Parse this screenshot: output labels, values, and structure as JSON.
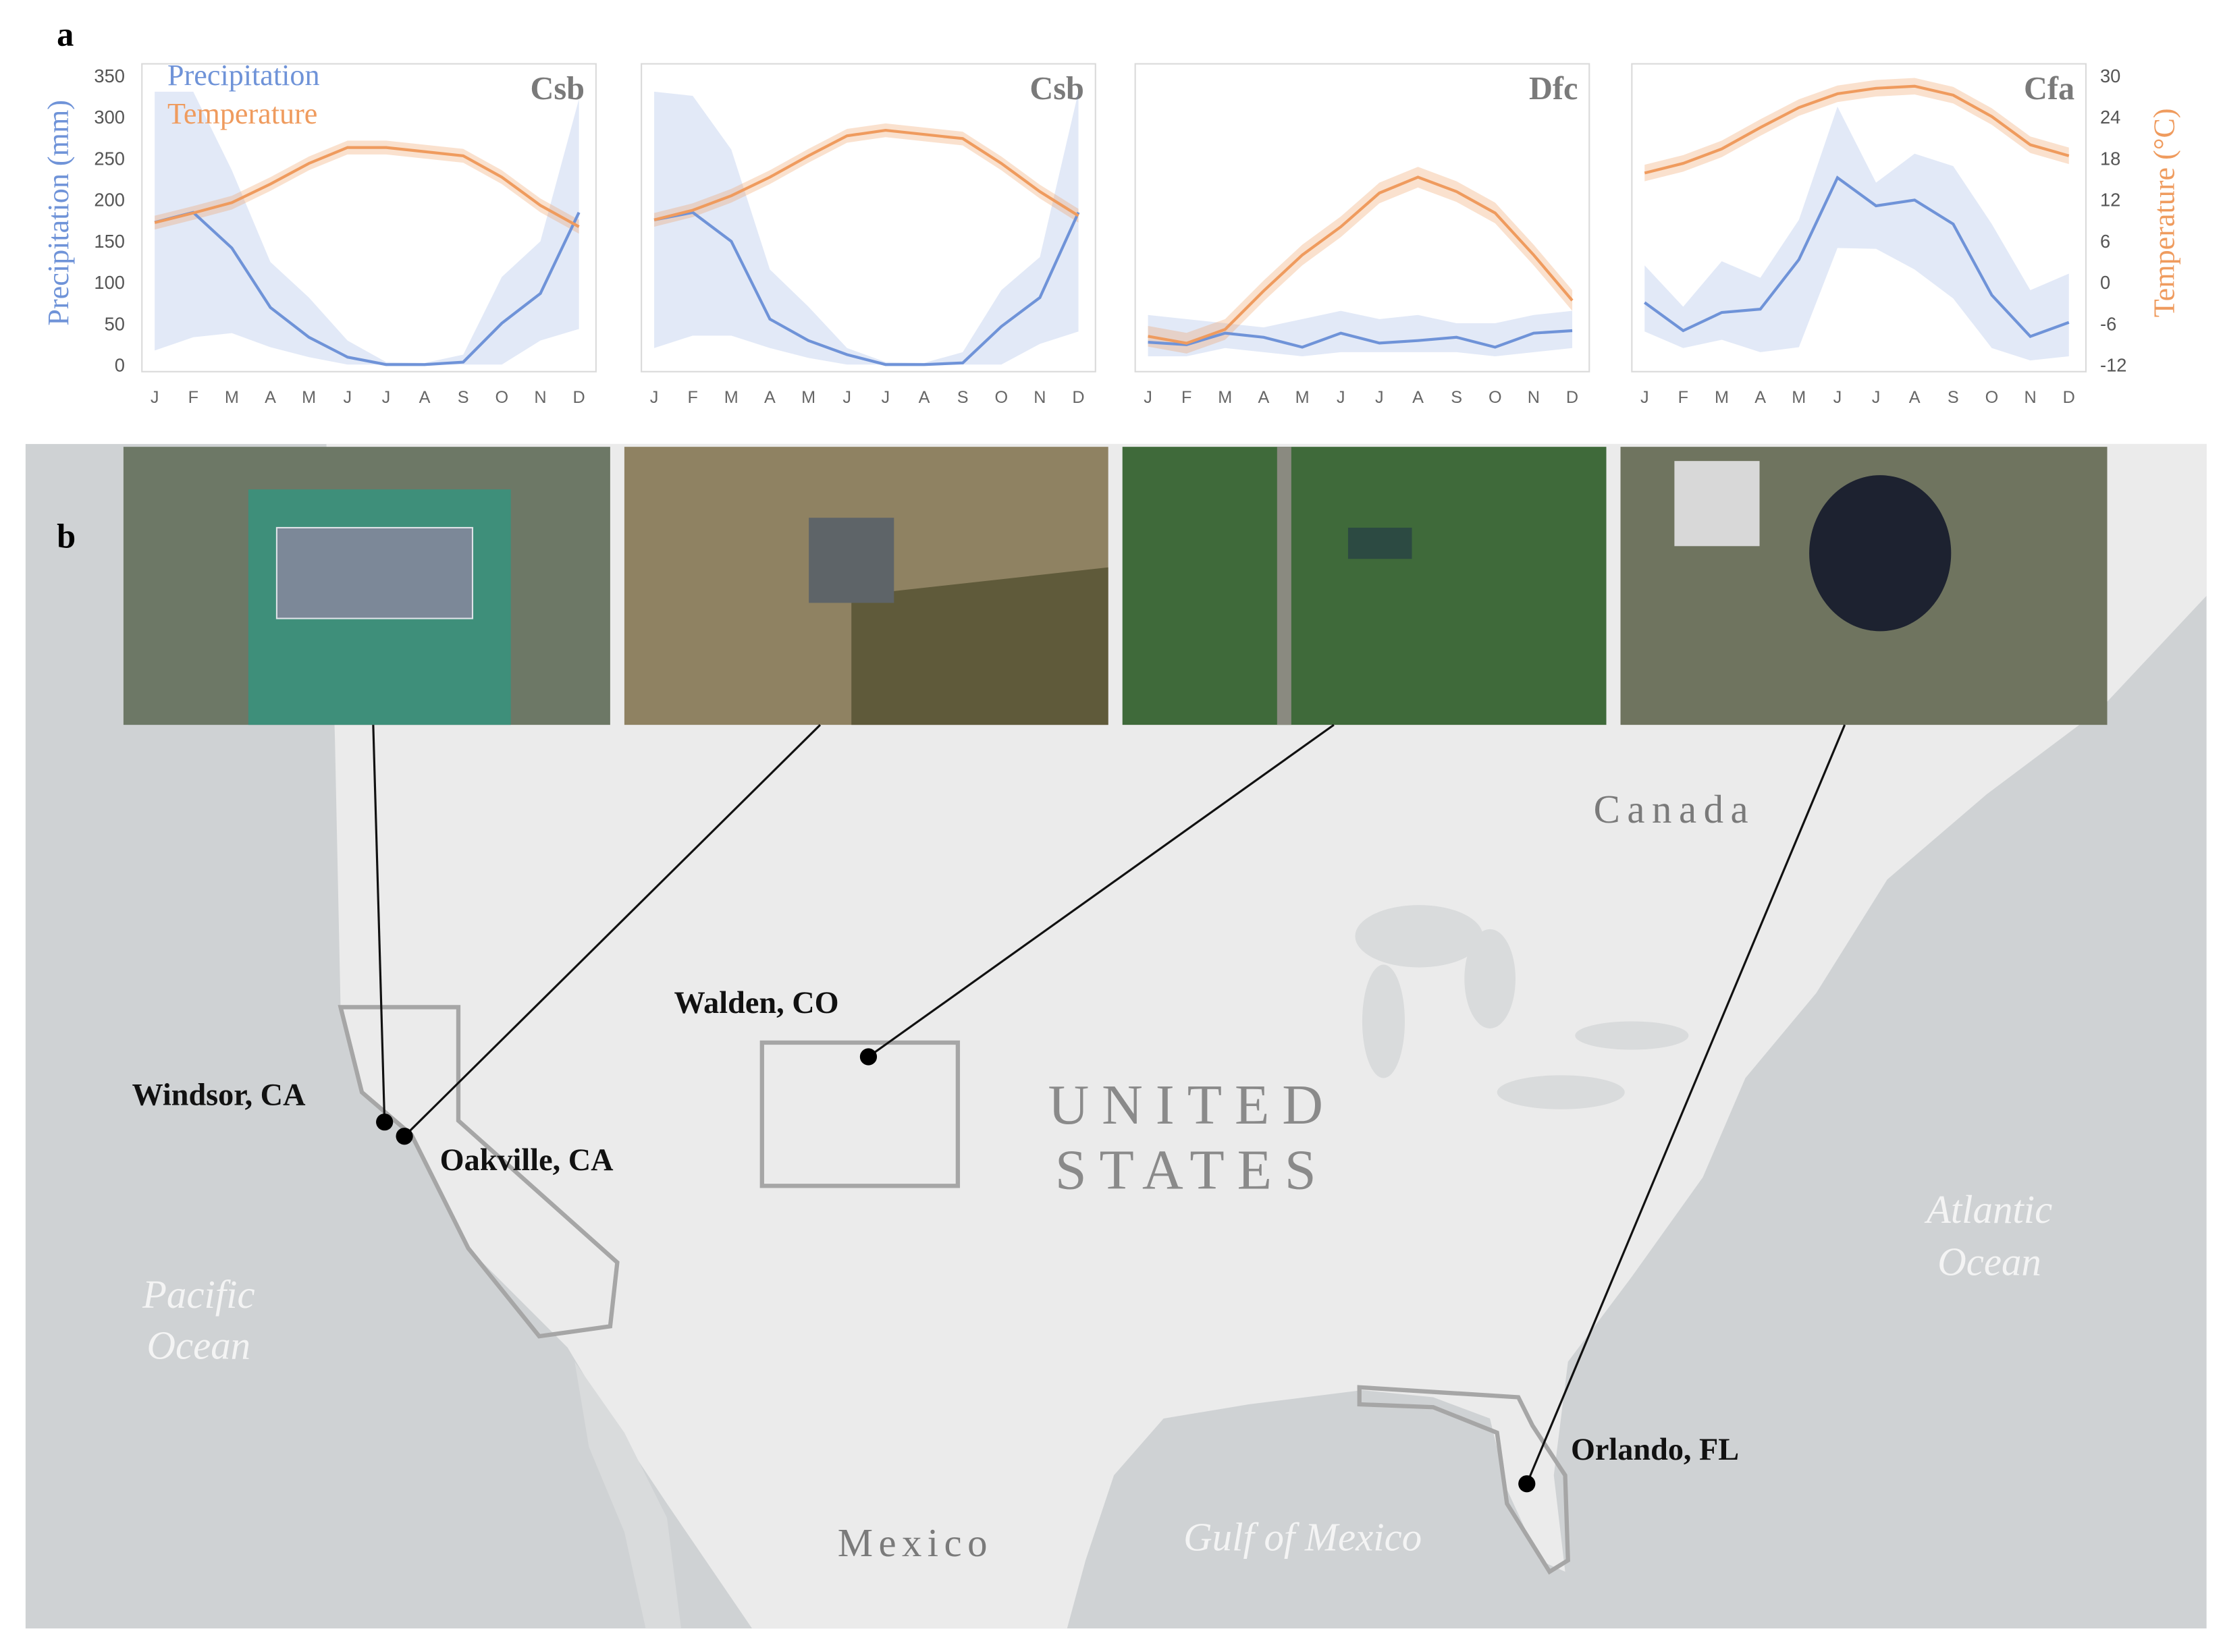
{
  "panel_labels": [
    "a",
    "b"
  ],
  "chart_data": [
    {
      "type": "line",
      "title": "Csb",
      "ylabel": "Precipitation (mm)",
      "categories": [
        "J",
        "F",
        "M",
        "A",
        "M",
        "J",
        "J",
        "A",
        "S",
        "O",
        "N",
        "D"
      ],
      "ylim": [
        0,
        350
      ],
      "yticks": [
        0,
        50,
        100,
        150,
        200,
        250,
        300,
        350
      ],
      "y2lim": [
        -12,
        30
      ],
      "series": [
        {
          "name": "Precipitation",
          "color": "#6f93d8",
          "values": [
            172,
            184,
            141,
            69,
            33,
            9,
            0,
            0,
            3,
            50,
            86,
            184
          ],
          "band_low": [
            17,
            33,
            38,
            21,
            9,
            0,
            0,
            0,
            0,
            0,
            29,
            43
          ],
          "band_high": [
            330,
            330,
            235,
            124,
            81,
            29,
            3,
            2,
            12,
            106,
            149,
            321
          ]
        },
        {
          "name": "Temperature",
          "color": "#ef9b5e",
          "axis": "y2",
          "values": [
            8.6,
            10,
            11.5,
            14.2,
            17.2,
            19.5,
            19.5,
            18.9,
            18.3,
            15.2,
            11.1,
            8
          ],
          "band_low": [
            7.6,
            9,
            10.5,
            13.2,
            16.2,
            18.5,
            18.5,
            17.9,
            17.3,
            14.2,
            10.1,
            7
          ],
          "band_high": [
            9.6,
            11,
            12.5,
            15.2,
            18.2,
            20.5,
            20.5,
            19.9,
            19.3,
            16.2,
            12.1,
            9
          ]
        }
      ]
    },
    {
      "type": "line",
      "title": "Csb",
      "categories": [
        "J",
        "F",
        "M",
        "A",
        "M",
        "J",
        "J",
        "A",
        "S",
        "O",
        "N",
        "D"
      ],
      "ylim": [
        0,
        350
      ],
      "y2lim": [
        -12,
        30
      ],
      "series": [
        {
          "color": "#6f93d8",
          "values": [
            175,
            184,
            149,
            55,
            29,
            12,
            0,
            0,
            2,
            46,
            81,
            184
          ],
          "band_low": [
            20,
            35,
            35,
            20,
            8,
            0,
            0,
            0,
            0,
            0,
            25,
            40
          ],
          "band_high": [
            330,
            325,
            260,
            115,
            70,
            20,
            3,
            2,
            15,
            90,
            130,
            330
          ]
        },
        {
          "color": "#ef9b5e",
          "axis": "y2",
          "values": [
            9,
            10.4,
            12.5,
            15.2,
            18.3,
            21.2,
            22,
            21.4,
            20.8,
            17.2,
            13.1,
            9.6
          ],
          "band_low": [
            8,
            9.4,
            11.5,
            14.2,
            17.3,
            20.2,
            21,
            20.4,
            19.8,
            16.2,
            12.1,
            8.6
          ],
          "band_high": [
            10,
            11.4,
            13.5,
            16.2,
            19.3,
            22.2,
            23,
            22.4,
            21.8,
            18.2,
            14.1,
            10.6
          ]
        }
      ]
    },
    {
      "type": "line",
      "title": "Dfc",
      "categories": [
        "J",
        "F",
        "M",
        "A",
        "M",
        "J",
        "J",
        "A",
        "S",
        "O",
        "N",
        "D"
      ],
      "ylim": [
        0,
        350
      ],
      "y2lim": [
        -12,
        30
      ],
      "series": [
        {
          "color": "#6f93d8",
          "values": [
            27,
            24,
            38,
            33,
            21,
            38,
            26,
            29,
            33,
            21,
            38,
            41
          ],
          "band_low": [
            10,
            10,
            20,
            15,
            10,
            15,
            15,
            15,
            15,
            10,
            15,
            20
          ],
          "band_high": [
            60,
            55,
            50,
            45,
            55,
            65,
            55,
            60,
            50,
            50,
            60,
            65
          ]
        },
        {
          "color": "#ef9b5e",
          "axis": "y2",
          "values": [
            -7.9,
            -8.9,
            -6.9,
            -1.3,
            3.9,
            8,
            12.9,
            15.2,
            13.1,
            10,
            3.9,
            -2.7
          ],
          "band_low": [
            -9.4,
            -10.4,
            -8.4,
            -2.8,
            2.4,
            6.5,
            11.4,
            13.7,
            11.6,
            8.5,
            2.4,
            -4.2
          ],
          "band_high": [
            -6.4,
            -7.4,
            -5.4,
            0.2,
            5.4,
            9.5,
            14.4,
            16.7,
            14.6,
            11.5,
            5.4,
            -1.2
          ]
        }
      ]
    },
    {
      "type": "line",
      "title": "Cfa",
      "y2label": "Temperature (°C)",
      "categories": [
        "J",
        "F",
        "M",
        "A",
        "M",
        "J",
        "J",
        "A",
        "S",
        "O",
        "N",
        "D"
      ],
      "ylim": [
        0,
        350
      ],
      "y2lim": [
        -12,
        30
      ],
      "y2ticks": [
        -12,
        -6,
        0,
        6,
        12,
        18,
        24,
        30
      ],
      "series": [
        {
          "color": "#6f93d8",
          "values": [
            75,
            41,
            63,
            67,
            127,
            226,
            192,
            199,
            170,
            84,
            34,
            51
          ],
          "band_low": [
            40,
            20,
            30,
            15,
            21,
            141,
            140,
            115,
            80,
            20,
            5,
            10
          ],
          "band_high": [
            120,
            70,
            125,
            105,
            175,
            312,
            220,
            255,
            240,
            170,
            90,
            110
          ]
        },
        {
          "color": "#ef9b5e",
          "axis": "y2",
          "values": [
            15.8,
            17.2,
            19.3,
            22.4,
            25.3,
            27.3,
            28.1,
            28.4,
            27.1,
            24,
            19.9,
            18.3
          ],
          "band_low": [
            14.6,
            16,
            18.1,
            21.2,
            24.1,
            26.1,
            26.9,
            27.2,
            25.9,
            22.8,
            18.7,
            17.1
          ],
          "band_high": [
            17,
            18.4,
            20.5,
            23.6,
            26.5,
            28.5,
            29.3,
            29.6,
            28.3,
            25.2,
            21.1,
            19.5
          ]
        }
      ]
    }
  ],
  "map": {
    "regions": [
      {
        "lines": [
          "Canada"
        ]
      },
      {
        "lines": [
          "UNITED",
          "STATES"
        ]
      },
      {
        "lines": [
          "Mexico"
        ]
      },
      {
        "lines": [
          "Pacific",
          "Ocean"
        ]
      },
      {
        "lines": [
          "Atlantic",
          "Ocean"
        ]
      },
      {
        "lines": [
          "Gulf of Mexico"
        ]
      }
    ],
    "cities": [
      {
        "name": "Windsor, CA"
      },
      {
        "name": "Oakville, CA"
      },
      {
        "name": "Walden, CO"
      },
      {
        "name": "Orlando, FL"
      }
    ]
  }
}
